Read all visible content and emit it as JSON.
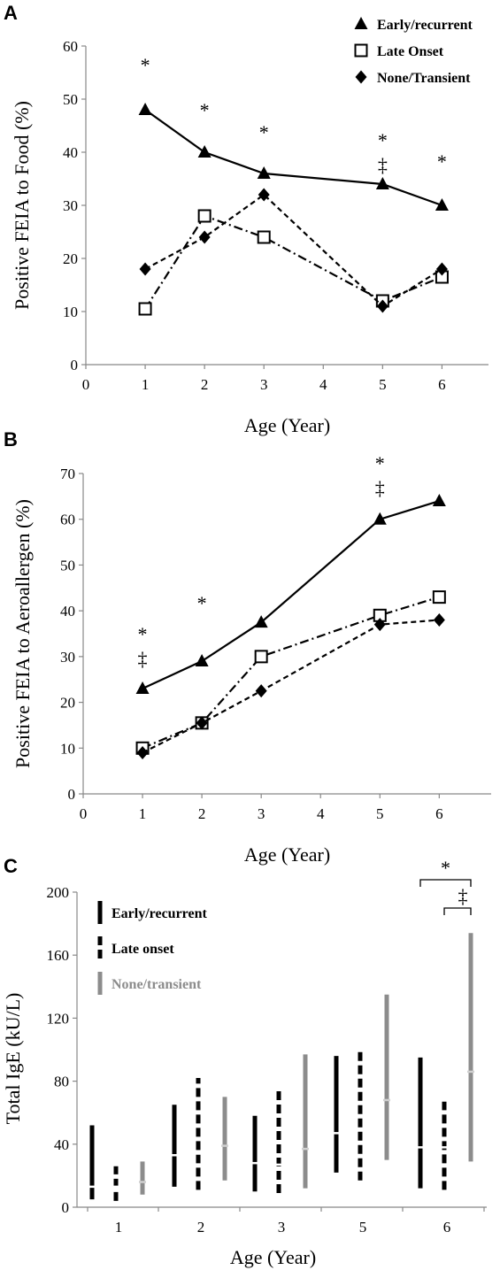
{
  "chart_data": [
    {
      "panel_label": "A",
      "type": "line",
      "xlabel": "Age (Year)",
      "ylabel": "Positive FEIA to Food (%)",
      "xlim": [
        0,
        7
      ],
      "ylim": [
        0,
        60
      ],
      "x_ticks": [
        "0",
        "1",
        "2",
        "3",
        "4",
        "5",
        "6"
      ],
      "y_ticks": [
        "0",
        "10",
        "20",
        "30",
        "40",
        "50",
        "60"
      ],
      "legend_position": "top-right",
      "series": [
        {
          "name": "Early/recurrent",
          "marker": "triangle",
          "line": "solid",
          "x": [
            1,
            2,
            3,
            5,
            6
          ],
          "y": [
            48,
            40,
            36,
            34,
            30
          ]
        },
        {
          "name": "Late Onset",
          "marker": "open-square",
          "line": "dash-dot",
          "x": [
            1,
            2,
            3,
            5,
            6
          ],
          "y": [
            10.5,
            28,
            24,
            12,
            16.5
          ]
        },
        {
          "name": "None/Transient",
          "marker": "diamond",
          "line": "dashed",
          "x": [
            1,
            2,
            3,
            5,
            6
          ],
          "y": [
            18,
            24,
            32,
            11,
            18
          ]
        }
      ],
      "annotations": [
        {
          "text": "*",
          "x": 1
        },
        {
          "text": "*",
          "x": 2
        },
        {
          "text": "*",
          "x": 3
        },
        {
          "text": "*",
          "x": 5
        },
        {
          "text": "‡",
          "x": 5
        },
        {
          "text": "*",
          "x": 6
        }
      ]
    },
    {
      "panel_label": "B",
      "type": "line",
      "xlabel": "Age (Year)",
      "ylabel": "Positive FEIA to Aeroallergen (%)",
      "xlim": [
        0,
        7
      ],
      "ylim": [
        0,
        70
      ],
      "x_ticks": [
        "0",
        "1",
        "2",
        "3",
        "4",
        "5",
        "6"
      ],
      "y_ticks": [
        "0",
        "10",
        "20",
        "30",
        "40",
        "50",
        "60",
        "70"
      ],
      "series": [
        {
          "name": "Early/recurrent",
          "marker": "triangle",
          "line": "solid",
          "x": [
            1,
            2,
            3,
            5,
            6
          ],
          "y": [
            23,
            29,
            37.5,
            60,
            64
          ]
        },
        {
          "name": "Late Onset",
          "marker": "open-square",
          "line": "dash-dot",
          "x": [
            1,
            2,
            3,
            5,
            6
          ],
          "y": [
            10,
            15.5,
            30,
            39,
            43
          ]
        },
        {
          "name": "None/Transient",
          "marker": "diamond",
          "line": "dashed",
          "x": [
            1,
            2,
            3,
            5,
            6
          ],
          "y": [
            9,
            15.5,
            22.5,
            37,
            38
          ]
        }
      ],
      "annotations": [
        {
          "text": "*",
          "x": 1
        },
        {
          "text": "‡",
          "x": 1
        },
        {
          "text": "*",
          "x": 2
        },
        {
          "text": "*",
          "x": 5
        },
        {
          "text": "‡",
          "x": 5
        }
      ]
    },
    {
      "panel_label": "C",
      "type": "range-bar",
      "xlabel": "Age (Year)",
      "ylabel": "Total IgE (kU/L)",
      "ylim": [
        0,
        200
      ],
      "categories": [
        "1",
        "2",
        "3",
        "5",
        "6"
      ],
      "y_ticks": [
        "0",
        "40",
        "80",
        "120",
        "160",
        "200"
      ],
      "legend_position": "top-left",
      "series": [
        {
          "name": "Early/recurrent",
          "color": "#000000",
          "line": "solid",
          "low": [
            5,
            13,
            10,
            22,
            12
          ],
          "median": [
            13,
            33,
            28,
            47,
            38
          ],
          "high": [
            52,
            65,
            58,
            96,
            95
          ]
        },
        {
          "name": "Late onset",
          "color": "#000000",
          "line": "dashed",
          "low": [
            4,
            11,
            9,
            17,
            11
          ],
          "median": [
            13,
            34,
            27,
            33,
            38
          ],
          "high": [
            26,
            82,
            75,
            100,
            67
          ]
        },
        {
          "name": "None/transient",
          "color": "#8c8c8c",
          "line": "solid",
          "low": [
            8,
            17,
            12,
            30,
            29
          ],
          "median": [
            16,
            39,
            37,
            68,
            86
          ],
          "high": [
            29,
            70,
            97,
            135,
            174
          ]
        }
      ],
      "significance": [
        {
          "text": "*",
          "category": "6",
          "from_series": 0,
          "to_series": 2
        },
        {
          "text": "‡",
          "category": "6",
          "from_series": 1,
          "to_series": 2
        }
      ]
    }
  ]
}
